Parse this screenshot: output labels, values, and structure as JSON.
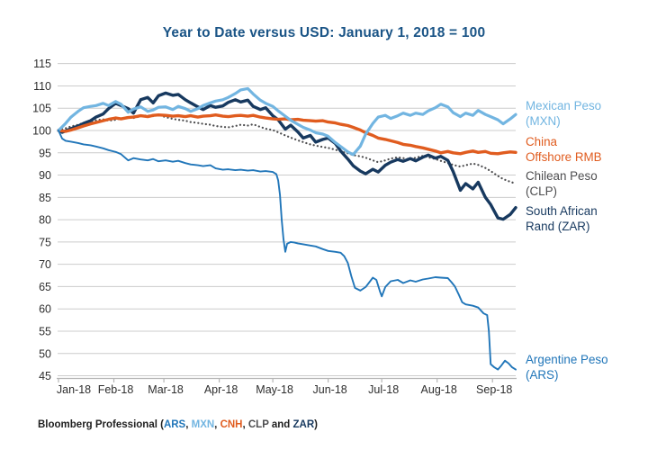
{
  "chart_data": {
    "type": "line",
    "title": "Year to Date versus USD: January 1, 2018 = 100",
    "grid": true,
    "legend_position": "right",
    "ylim": [
      45,
      115
    ],
    "y_ticks": [
      115,
      110,
      105,
      100,
      95,
      90,
      85,
      80,
      75,
      70,
      65,
      60,
      55,
      50,
      45
    ],
    "x_domain": [
      0,
      256
    ],
    "x_tick_days": [
      0,
      31,
      59,
      90,
      120,
      151,
      181,
      212,
      243
    ],
    "x_tick_labels": [
      "Jan-18",
      "Feb-18",
      "Mar-18",
      "Apr-18",
      "May-18",
      "Jun-18",
      "Jul-18",
      "Aug-18",
      "Sep-18"
    ],
    "series": [
      {
        "name": "Mexican Peso (MXN)",
        "ticker": "MXN",
        "label_lines": [
          "Mexican Peso",
          "(MXN)"
        ],
        "color": "#72b5e1",
        "style": "solid",
        "width": 3.2,
        "x_days": [
          0,
          4,
          7,
          11,
          14,
          18,
          21,
          25,
          28,
          32,
          35,
          39,
          42,
          46,
          50,
          53,
          56,
          60,
          64,
          67,
          71,
          74,
          78,
          81,
          85,
          88,
          92,
          95,
          99,
          102,
          106,
          109,
          113,
          116,
          120,
          123,
          127,
          130,
          134,
          137,
          141,
          144,
          148,
          151,
          155,
          158,
          162,
          165,
          169,
          172,
          176,
          179,
          183,
          186,
          190,
          193,
          197,
          200,
          204,
          207,
          211,
          214,
          218,
          221,
          225,
          228,
          232,
          235,
          239,
          242,
          246,
          249,
          253,
          256
        ],
        "values": [
          100,
          101.6,
          103,
          104.3,
          105.1,
          105.4,
          105.6,
          106.1,
          105.6,
          106.5,
          105.9,
          104.1,
          104.8,
          105.3,
          104.3,
          104.6,
          105.2,
          105.3,
          104.7,
          105.4,
          104.9,
          104.3,
          104.9,
          105.6,
          106.2,
          106.6,
          106.9,
          107.4,
          108.3,
          109.1,
          109.4,
          108.2,
          106.8,
          106.1,
          105.4,
          104.4,
          103.2,
          102.3,
          101.4,
          100.7,
          100.1,
          99.5,
          99.2,
          98.7,
          97.3,
          96.4,
          95.2,
          94.6,
          96.5,
          99.2,
          101.6,
          103,
          103.4,
          102.7,
          103.3,
          103.9,
          103.4,
          103.9,
          103.6,
          104.4,
          105.1,
          105.9,
          105.3,
          104,
          103.1,
          103.9,
          103.4,
          104.5,
          103.6,
          103.1,
          102.4,
          101.5,
          102.6,
          103.6
        ]
      },
      {
        "name": "China Offshore RMB",
        "ticker": "CNH",
        "label_lines": [
          "China",
          "Offshore RMB"
        ],
        "color": "#e05c1f",
        "style": "solid",
        "width": 3.4,
        "x_days": [
          0,
          4,
          7,
          11,
          14,
          18,
          21,
          25,
          28,
          32,
          35,
          39,
          42,
          46,
          50,
          53,
          56,
          60,
          64,
          67,
          71,
          74,
          78,
          81,
          85,
          88,
          92,
          95,
          99,
          102,
          106,
          109,
          113,
          116,
          120,
          123,
          127,
          130,
          134,
          137,
          141,
          144,
          148,
          151,
          155,
          158,
          162,
          165,
          169,
          172,
          176,
          179,
          183,
          186,
          190,
          193,
          197,
          200,
          204,
          207,
          211,
          214,
          218,
          221,
          225,
          228,
          232,
          235,
          239,
          242,
          246,
          249,
          253,
          256
        ],
        "values": [
          100,
          99.8,
          100.1,
          100.6,
          101,
          101.5,
          101.8,
          102.2,
          102.5,
          102.8,
          102.6,
          102.9,
          103,
          103.3,
          103.1,
          103.4,
          103.5,
          103.4,
          103.2,
          103.3,
          103.1,
          103.3,
          103,
          103.2,
          103.3,
          103.5,
          103.2,
          103.1,
          103.3,
          103.4,
          103.2,
          103.4,
          103,
          102.8,
          102.6,
          102.5,
          102.6,
          102.4,
          102.5,
          102.3,
          102.2,
          102.1,
          102.2,
          101.9,
          101.7,
          101.4,
          101.1,
          100.7,
          100.1,
          99.5,
          98.9,
          98.3,
          98,
          97.7,
          97.3,
          96.9,
          96.7,
          96.4,
          96.1,
          95.8,
          95.4,
          95,
          95.3,
          95,
          94.8,
          95.1,
          95.4,
          95.1,
          95.3,
          94.9,
          94.8,
          95,
          95.2,
          95.1
        ]
      },
      {
        "name": "Chilean Peso (CLP)",
        "ticker": "CLP",
        "label_lines": [
          "Chilean Peso",
          "(CLP)"
        ],
        "color": "#4d4d4f",
        "style": "dotted",
        "width": 2.2,
        "x_days": [
          0,
          4,
          7,
          11,
          14,
          18,
          21,
          25,
          28,
          32,
          35,
          39,
          42,
          46,
          50,
          53,
          56,
          60,
          64,
          67,
          71,
          74,
          78,
          81,
          85,
          88,
          92,
          95,
          99,
          102,
          106,
          109,
          113,
          116,
          120,
          123,
          127,
          130,
          134,
          137,
          141,
          144,
          148,
          151,
          155,
          158,
          162,
          165,
          169,
          172,
          176,
          179,
          183,
          186,
          190,
          193,
          197,
          200,
          204,
          207,
          211,
          214,
          218,
          221,
          225,
          228,
          232,
          235,
          239,
          242,
          246,
          249,
          253,
          256
        ],
        "values": [
          100,
          100.5,
          100.9,
          101.3,
          101.7,
          102,
          102.3,
          102.5,
          102.2,
          102.4,
          102.7,
          103,
          102.8,
          103.2,
          103.4,
          103.2,
          103.5,
          103,
          102.6,
          102.4,
          102.2,
          101.9,
          101.7,
          101.5,
          101.3,
          101,
          100.8,
          100.7,
          101,
          101.3,
          101.1,
          101.4,
          100.8,
          100.4,
          100.1,
          99.6,
          98.9,
          98.4,
          97.8,
          97.4,
          96.9,
          96.6,
          96.3,
          96.1,
          95.7,
          95.3,
          94.9,
          94.5,
          94.2,
          93.9,
          93.3,
          92.9,
          93.3,
          93.7,
          94,
          93.8,
          93.5,
          93.9,
          94.3,
          94,
          93.6,
          93.2,
          92.7,
          92.3,
          91.9,
          92.2,
          92.6,
          92.3,
          91.6,
          90.9,
          89.8,
          89.1,
          88.5,
          88.1
        ]
      },
      {
        "name": "South African Rand (ZAR)",
        "ticker": "ZAR",
        "label_lines": [
          "South African",
          "Rand (ZAR)"
        ],
        "color": "#17395f",
        "style": "solid",
        "width": 3.4,
        "x_days": [
          0,
          2,
          4,
          7,
          11,
          14,
          18,
          21,
          25,
          28,
          32,
          35,
          39,
          42,
          46,
          50,
          53,
          56,
          60,
          64,
          67,
          71,
          74,
          78,
          81,
          85,
          88,
          92,
          95,
          99,
          102,
          106,
          109,
          113,
          116,
          120,
          123,
          127,
          130,
          134,
          137,
          141,
          144,
          148,
          151,
          155,
          158,
          162,
          165,
          169,
          172,
          176,
          179,
          183,
          186,
          190,
          193,
          197,
          200,
          204,
          207,
          211,
          214,
          218,
          221,
          225,
          228,
          232,
          235,
          239,
          242,
          246,
          249,
          253,
          256
        ],
        "values": [
          100,
          99.6,
          99.9,
          100.4,
          101,
          101.6,
          102.2,
          103,
          103.7,
          104.9,
          106.1,
          105.6,
          104.9,
          103.9,
          106.9,
          107.4,
          106.2,
          107.8,
          108.4,
          107.9,
          108.1,
          106.9,
          106.2,
          105.3,
          104.7,
          105.6,
          105.2,
          105.5,
          106.3,
          106.9,
          106.4,
          106.8,
          105.4,
          104.7,
          105.1,
          103.3,
          102.4,
          100.3,
          101.2,
          99.7,
          98.3,
          98.9,
          97.4,
          98,
          98.3,
          97.1,
          95.4,
          93.6,
          92.1,
          90.9,
          90.3,
          91.3,
          90.7,
          92.2,
          92.9,
          93.5,
          93.1,
          93.7,
          93.2,
          94,
          94.5,
          93.8,
          94.2,
          93.3,
          90.8,
          86.6,
          88.1,
          86.9,
          88.4,
          85,
          83.4,
          80.4,
          80.1,
          81.2,
          82.7
        ]
      },
      {
        "name": "Argentine Peso (ARS)",
        "ticker": "ARS",
        "label_lines": [
          "Argentine Peso",
          "(ARS)"
        ],
        "color": "#2176b9",
        "style": "solid",
        "width": 1.9,
        "x_days": [
          0,
          2,
          4,
          7,
          11,
          14,
          18,
          21,
          25,
          28,
          32,
          35,
          39,
          42,
          46,
          50,
          53,
          56,
          60,
          64,
          67,
          71,
          74,
          78,
          81,
          85,
          88,
          92,
          95,
          99,
          102,
          106,
          109,
          113,
          116,
          120,
          122,
          123,
          124,
          125,
          126,
          127,
          128,
          130,
          132,
          134,
          137,
          141,
          144,
          148,
          151,
          155,
          158,
          160,
          162,
          164,
          166,
          169,
          172,
          176,
          178,
          180,
          181,
          183,
          186,
          190,
          193,
          197,
          200,
          204,
          207,
          211,
          214,
          218,
          220,
          222,
          224,
          226,
          228,
          232,
          235,
          238,
          240,
          241,
          242,
          244,
          246,
          248,
          250,
          252,
          254,
          256
        ],
        "values": [
          100,
          98.2,
          97.7,
          97.5,
          97.2,
          96.9,
          96.7,
          96.4,
          96,
          95.6,
          95.2,
          94.7,
          93.3,
          93.8,
          93.5,
          93.3,
          93.6,
          93.1,
          93.3,
          93,
          93.2,
          92.7,
          92.4,
          92.2,
          92,
          92.2,
          91.5,
          91.2,
          91.3,
          91.1,
          91.2,
          91,
          91.1,
          90.8,
          90.9,
          90.7,
          90.2,
          88.8,
          85.5,
          80,
          75.6,
          72.8,
          74.6,
          75,
          74.9,
          74.7,
          74.5,
          74.2,
          74,
          73.4,
          73,
          72.8,
          72.6,
          71.8,
          70.3,
          67.3,
          64.7,
          64.1,
          64.9,
          67,
          66.5,
          63.9,
          62.8,
          64.9,
          66.2,
          66.5,
          65.8,
          66.4,
          66.1,
          66.6,
          66.8,
          67.1,
          67,
          66.9,
          66,
          65,
          63.3,
          61.5,
          61,
          60.7,
          60.3,
          59,
          58.6,
          55,
          47.6,
          46.9,
          46.4,
          47.3,
          48.4,
          47.8,
          46.9,
          46.4
        ]
      }
    ]
  },
  "footer": {
    "segments": [
      {
        "text": "Bloomberg Professional (",
        "color": "#1f1f1f"
      },
      {
        "text": "ARS",
        "color": "#2176b9"
      },
      {
        "text": ", ",
        "color": "#1f1f1f"
      },
      {
        "text": "MXN",
        "color": "#72b5e1"
      },
      {
        "text": ", ",
        "color": "#1f1f1f"
      },
      {
        "text": "CNH",
        "color": "#e05c1f"
      },
      {
        "text": ", ",
        "color": "#1f1f1f"
      },
      {
        "text": "CLP",
        "color": "#4d4d4f"
      },
      {
        "text": " and ",
        "color": "#1f1f1f"
      },
      {
        "text": "ZAR",
        "color": "#17395f"
      },
      {
        "text": ")",
        "color": "#1f1f1f"
      }
    ]
  },
  "colors": {
    "title": "#1a5486",
    "axis_text": "#2e2e2e",
    "gridline": "#cccccc",
    "axis_line": "#b5b5b5"
  }
}
